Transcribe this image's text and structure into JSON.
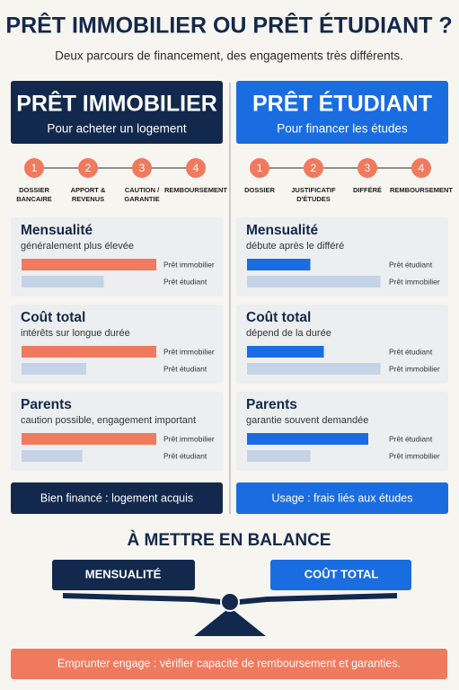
{
  "title": "PRÊT IMMOBILIER OU PRÊT ÉTUDIANT ?",
  "subtitle": "Deux parcours de financement, des engagements très différents.",
  "panels": [
    {
      "title": "PRÊT IMMOBILIER",
      "subtitle": "Pour acheter un logement",
      "steps": [
        {
          "number": 1,
          "label": [
            "DOSSIER",
            "BANCAIRE"
          ]
        },
        {
          "number": 2,
          "label": [
            "APPORT &",
            "REVENUS"
          ]
        },
        {
          "number": 3,
          "label": [
            "CAUTION /",
            "GARANTIE"
          ]
        },
        {
          "number": 4,
          "label": [
            "REMBOURSEMENT"
          ]
        }
      ],
      "sections": [
        {
          "title": "Mensualité",
          "subtitle": "généralement plus élevée",
          "bars": [
            {
              "label": "Prêt immobilier",
              "value": 100
            },
            {
              "label": "Prêt étudiant",
              "value": 61
            }
          ]
        },
        {
          "title": "Coût total",
          "subtitle": "intérêts sur longue durée",
          "bars": [
            {
              "label": "Prêt immobilier",
              "value": 100
            },
            {
              "label": "Prêt étudiant",
              "value": 48
            }
          ]
        },
        {
          "title": "Parents",
          "subtitle": "caution possible, engagement important",
          "bars": [
            {
              "label": "Prêt immobilier",
              "value": 100
            },
            {
              "label": "Prêt étudiant",
              "value": 45
            }
          ]
        }
      ],
      "footer": "Bien financé : logement acquis"
    },
    {
      "title": "PRÊT ÉTUDIANT",
      "subtitle": "Pour financer les études",
      "steps": [
        {
          "number": 1,
          "label": [
            "DOSSIER"
          ]
        },
        {
          "number": 2,
          "label": [
            "JUSTIFICATIF",
            "D'ÉTUDES"
          ]
        },
        {
          "number": 3,
          "label": [
            "DIFFÉRÉ"
          ]
        },
        {
          "number": 4,
          "label": [
            "REMBOURSEMENT"
          ]
        }
      ],
      "sections": [
        {
          "title": "Mensualité",
          "subtitle": "débute après le différé",
          "bars": [
            {
              "label": "Prêt étudiant",
              "value": 47
            },
            {
              "label": "Prêt immobilier",
              "value": 99
            }
          ]
        },
        {
          "title": "Coût total",
          "subtitle": "dépend de la durée",
          "bars": [
            {
              "label": "Prêt étudiant",
              "value": 57
            },
            {
              "label": "Prêt immobilier",
              "value": 99
            }
          ]
        },
        {
          "title": "Parents",
          "subtitle": "garantie souvent demandée",
          "bars": [
            {
              "label": "Prêt étudiant",
              "value": 90
            },
            {
              "label": "Prêt immobilier",
              "value": 47
            }
          ]
        }
      ],
      "footer": "Usage : frais liés aux études"
    }
  ],
  "balance": {
    "title": "À METTRE EN BALANCE",
    "left": "MENSUALITÉ",
    "right": "COÛT TOTAL"
  },
  "footer": "Emprunter engage : vérifier capacité de remboursement et garanties."
}
